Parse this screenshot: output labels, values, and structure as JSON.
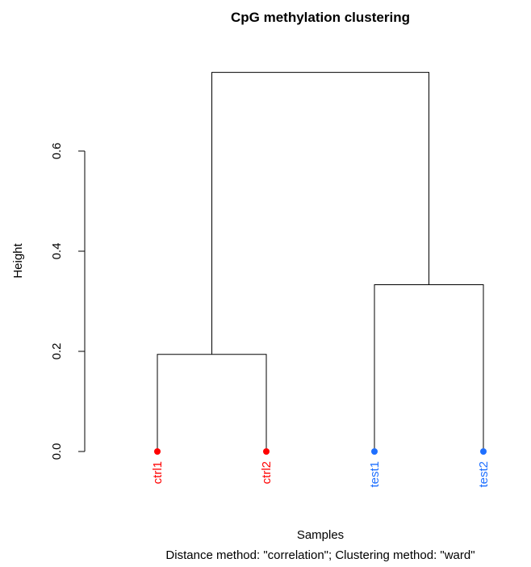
{
  "chart_data": {
    "type": "dendrogram",
    "title": "CpG methylation clustering",
    "xlabel": "Samples",
    "sublabel": "Distance method: \"correlation\"; Clustering method: \"ward\"",
    "ylabel": "Height",
    "ylim": [
      0,
      0.6
    ],
    "yticks": [
      0.0,
      0.2,
      0.4,
      0.6
    ],
    "ytick_labels": [
      "0.0",
      "0.2",
      "0.4",
      "0.6"
    ],
    "leaves": [
      {
        "label": "ctrl1",
        "color": "#ff0000"
      },
      {
        "label": "ctrl2",
        "color": "#ff0000"
      },
      {
        "label": "test1",
        "color": "#1e6fff"
      },
      {
        "label": "test2",
        "color": "#1e6fff"
      }
    ],
    "merges": [
      {
        "left": "ctrl1",
        "right": "ctrl2",
        "height": 0.194
      },
      {
        "left": "test1",
        "right": "test2",
        "height": 0.333
      },
      {
        "left": [
          "ctrl1",
          "ctrl2"
        ],
        "right": [
          "test1",
          "test2"
        ],
        "height": 0.757
      }
    ]
  }
}
